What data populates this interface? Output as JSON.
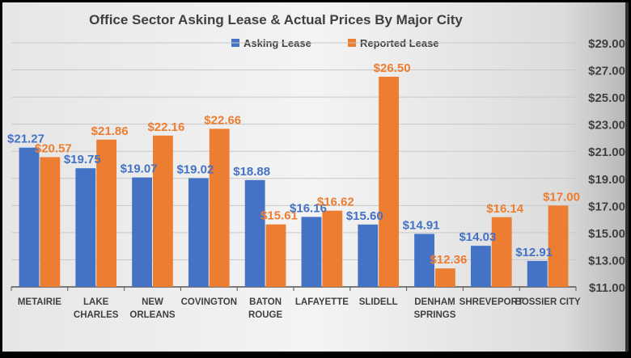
{
  "chart_data": {
    "type": "bar",
    "title": "Office Sector Asking Lease & Actual Prices By Major City",
    "categories": [
      "METAIRIE",
      "LAKE CHARLES",
      "NEW ORLEANS",
      "COVINGTON",
      "BATON ROUGE",
      "LAFAYETTE",
      "SLIDELL",
      "DENHAM SPRINGS",
      "SHREVEPORT",
      "BOSSIER CITY"
    ],
    "series": [
      {
        "name": "Asking Lease",
        "color": "#4472C4",
        "values": [
          21.27,
          19.75,
          19.07,
          19.02,
          18.88,
          16.16,
          15.6,
          14.91,
          14.03,
          12.91
        ]
      },
      {
        "name": "Reported Lease",
        "color": "#ED7D31",
        "values": [
          20.57,
          21.86,
          22.16,
          22.66,
          15.61,
          16.62,
          26.5,
          12.36,
          16.14,
          17.0
        ]
      }
    ],
    "ylim": [
      11,
      29
    ],
    "yticks": [
      "$11.00",
      "$13.00",
      "$15.00",
      "$17.00",
      "$19.00",
      "$21.00",
      "$23.00",
      "$25.00",
      "$27.00",
      "$29.00"
    ],
    "yaxis_position": "right",
    "legend_position": "top",
    "grid": true,
    "value_prefix": "$"
  }
}
